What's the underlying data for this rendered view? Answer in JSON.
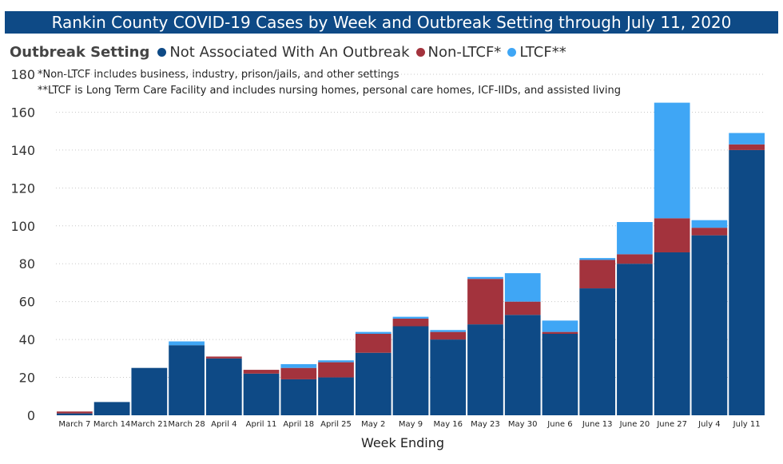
{
  "chart_data": {
    "type": "bar",
    "stacked": true,
    "title": "Rankin County COVID-19 Cases by Week and Outbreak Setting through July 11, 2020",
    "legend_title": "Outbreak Setting",
    "notes": [
      "*Non-LTCF includes business, industry, prison/jails, and other settings",
      "**LTCF is Long Term Care Facility and includes nursing homes, personal care homes, ICF-IIDs, and assisted living"
    ],
    "xlabel": "Week Ending",
    "ylabel": "",
    "ylim": [
      0,
      180
    ],
    "yticks": [
      0,
      20,
      40,
      60,
      80,
      100,
      120,
      140,
      160,
      180
    ],
    "categories": [
      "March 7",
      "March 14",
      "March 21",
      "March 28",
      "April 4",
      "April 11",
      "April 18",
      "April 25",
      "May 2",
      "May 9",
      "May 16",
      "May 23",
      "May 30",
      "June 6",
      "June 13",
      "June 20",
      "June 27",
      "July 4",
      "July 11"
    ],
    "series": [
      {
        "name": "Not Associated With An Outbreak",
        "color": "#0e4a86",
        "values": [
          1,
          7,
          25,
          37,
          30,
          22,
          19,
          20,
          33,
          47,
          40,
          48,
          53,
          43,
          67,
          80,
          86,
          95,
          140
        ]
      },
      {
        "name": "Non-LTCF*",
        "color": "#a3333d",
        "values": [
          1,
          0,
          0,
          0,
          1,
          2,
          6,
          8,
          10,
          4,
          4,
          24,
          7,
          1,
          15,
          5,
          18,
          4,
          3
        ]
      },
      {
        "name": "LTCF**",
        "color": "#3fa6f5",
        "values": [
          0,
          0,
          0,
          2,
          0,
          0,
          2,
          1,
          1,
          1,
          1,
          1,
          15,
          6,
          1,
          17,
          61,
          4,
          6
        ]
      }
    ],
    "grid": true,
    "legend_position": "top-left"
  }
}
